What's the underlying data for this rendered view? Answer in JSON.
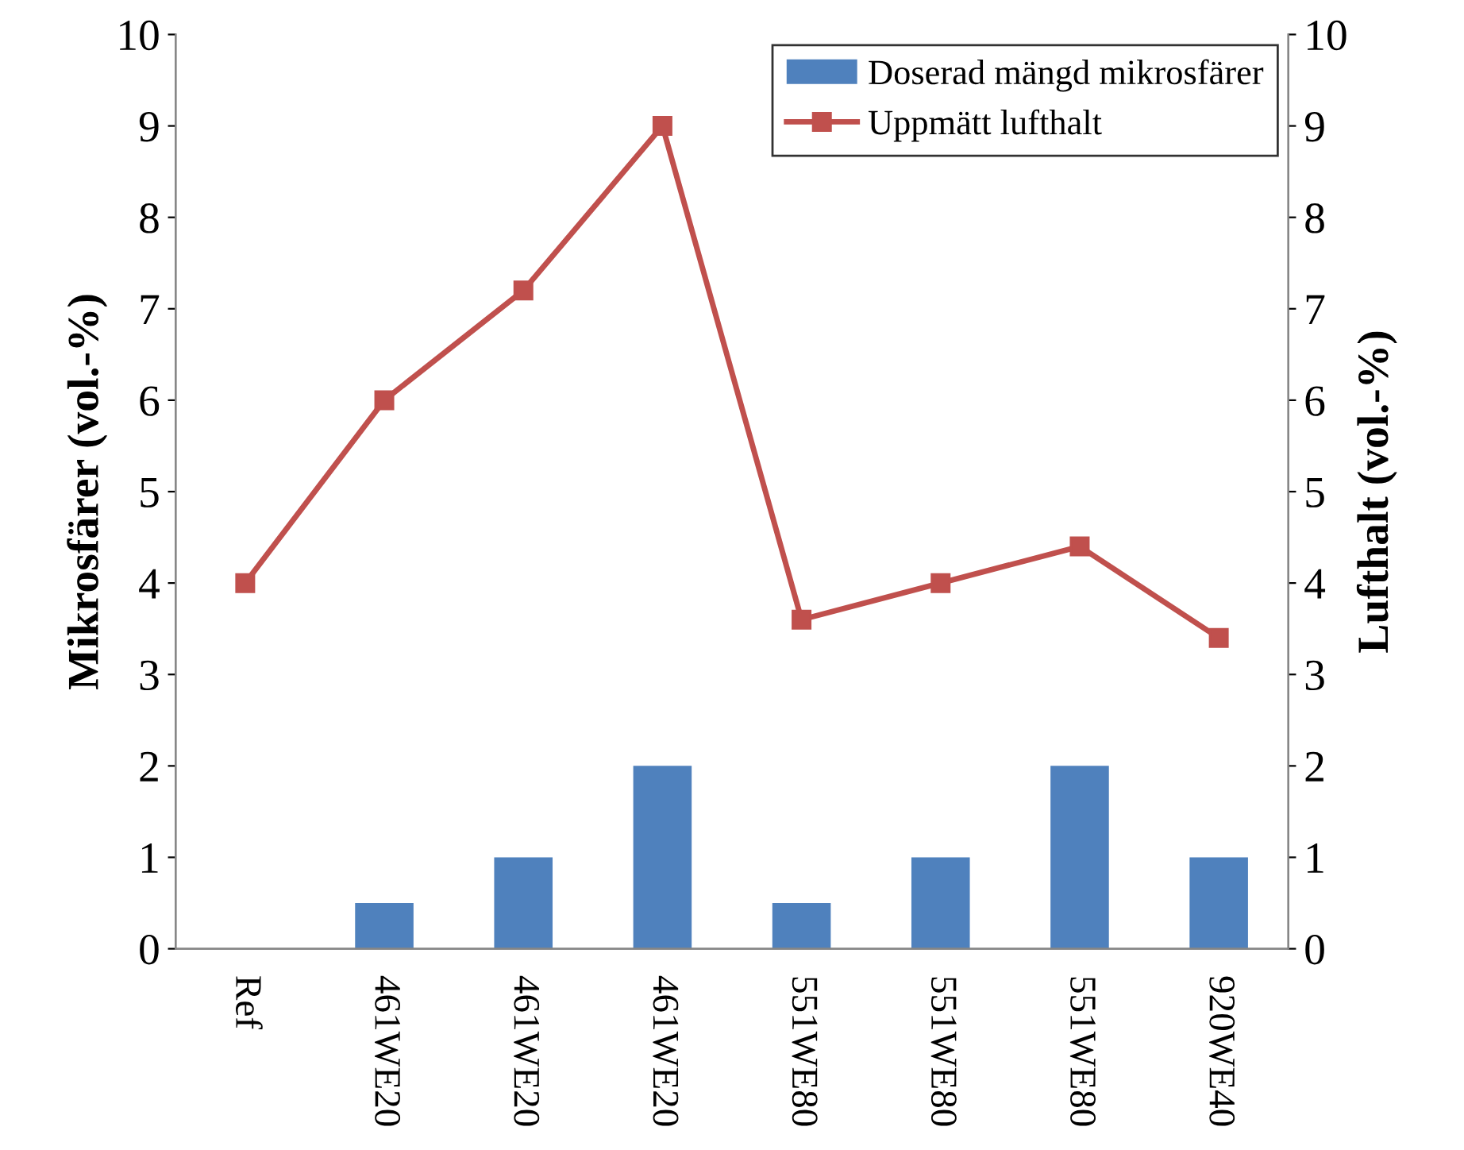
{
  "chart_data": {
    "type": "bar",
    "categories": [
      "Ref",
      "461WE20",
      "461WE20",
      "461WE20",
      "551WE80",
      "551WE80",
      "551WE80",
      "920WE40"
    ],
    "ylabel": "Mikrosfärer (vol.-%)",
    "y2label": "Lufthalt (vol.-%)",
    "ylim": [
      0,
      10
    ],
    "yticks": [
      0,
      1,
      2,
      3,
      4,
      5,
      6,
      7,
      8,
      9,
      10
    ],
    "y2lim": [
      0,
      10
    ],
    "y2ticks": [
      0,
      1,
      2,
      3,
      4,
      5,
      6,
      7,
      8,
      9,
      10
    ],
    "grid": false,
    "legend": "top right",
    "series": [
      {
        "name": "Doserad mängd mikrosfärer",
        "color": "#4f81bd",
        "values": [
          0,
          0.5,
          1,
          2,
          0.5,
          1,
          2,
          1
        ]
      },
      {
        "name": "Uppmätt lufthalt",
        "type": "line",
        "axis": "y2",
        "color": "#c0504d",
        "marker": "square",
        "line_style": "solid",
        "values": [
          4,
          6,
          7.2,
          9,
          3.6,
          4,
          4.4,
          3.4
        ]
      }
    ]
  }
}
